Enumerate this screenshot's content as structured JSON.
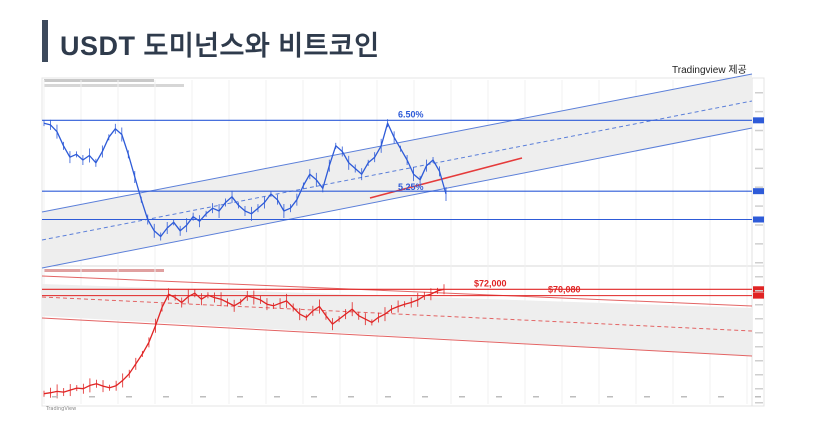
{
  "page": {
    "title": "USDT 도미넌스와 비트코인",
    "credit": "Tradingview 제공",
    "watermark": "TradingView"
  },
  "colors": {
    "title_bar": "#3d4a5c",
    "usdt_line": "#2e5bd8",
    "usdt_channel": "#5b7fd9",
    "btc_line": "#e02424",
    "btc_channel": "#e36464",
    "channel_fill": "#eeeeee"
  },
  "chart_data": [
    {
      "type": "line",
      "series": [
        {
          "values": [
            6.45,
            6.42,
            6.3,
            6.05,
            5.85,
            5.9,
            5.8,
            5.88,
            5.75,
            5.95,
            6.2,
            6.35,
            6.25,
            5.9,
            5.5,
            5.1,
            4.75,
            4.55,
            4.45,
            4.6,
            4.7,
            4.55,
            4.65,
            4.8,
            4.72,
            4.85,
            4.95,
            4.9,
            5.05,
            5.15,
            5.0,
            4.9,
            4.85,
            4.95,
            5.05,
            5.2,
            5.1,
            4.9,
            4.95,
            5.1,
            5.35,
            5.55,
            5.45,
            5.3,
            5.7,
            6.05,
            5.95,
            5.75,
            5.65,
            5.55,
            5.75,
            5.85,
            6.05,
            6.45,
            6.2,
            6.0,
            5.8,
            5.55,
            5.45,
            5.7,
            5.8,
            5.6,
            5.2
          ]
        }
      ],
      "annotations": [
        "6.50%",
        "5.25%"
      ],
      "levels": [
        6.5,
        5.25,
        4.75
      ],
      "ylim": [
        4.0,
        7.0
      ]
    },
    {
      "type": "line",
      "series": [
        {
          "values": [
            40500,
            40800,
            41200,
            41000,
            41600,
            42200,
            42000,
            43000,
            43500,
            42800,
            42300,
            42900,
            44500,
            46500,
            49500,
            52500,
            56000,
            61000,
            66500,
            70500,
            69500,
            68000,
            69800,
            70800,
            69000,
            70200,
            69500,
            69000,
            68000,
            67000,
            68200,
            70000,
            69500,
            68800,
            67500,
            67000,
            67800,
            68500,
            66500,
            64500,
            63500,
            65500,
            66800,
            64000,
            61500,
            63000,
            64500,
            66000,
            64000,
            63000,
            62000,
            63500,
            64500,
            66000,
            66800,
            67500,
            68000,
            68800,
            70000,
            70500,
            71500,
            72000
          ]
        }
      ],
      "annotations": [
        "$72,000",
        "$70,080"
      ],
      "levels": [
        72000,
        70080
      ],
      "ylim": [
        38000,
        76000
      ]
    }
  ]
}
